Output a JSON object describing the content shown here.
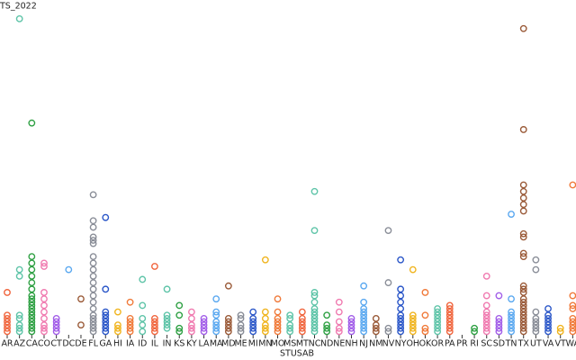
{
  "chart_data": {
    "type": "strip",
    "title": "TS_2022",
    "x_label": "STUSAB",
    "categories": [
      "AR",
      "AZ",
      "CA",
      "CO",
      "CT",
      "DC",
      "DE",
      "FL",
      "GA",
      "HI",
      "IA",
      "ID",
      "IL",
      "IN",
      "KS",
      "KY",
      "LA",
      "MA",
      "MD",
      "ME",
      "MI",
      "MN",
      "MO",
      "MS",
      "MT",
      "NC",
      "ND",
      "NE",
      "NH",
      "NJ",
      "NM",
      "NV",
      "NY",
      "OH",
      "OK",
      "OR",
      "PA",
      "PR",
      "RI",
      "SC",
      "SD",
      "TN",
      "TX",
      "UT",
      "VA",
      "VT",
      "WA"
    ],
    "values": [
      [
        1,
        2,
        3,
        4,
        5,
        6,
        13
      ],
      [
        1,
        2,
        3,
        5,
        6,
        18,
        20,
        97
      ],
      [
        1,
        2,
        3,
        4,
        5,
        6,
        7,
        8,
        9,
        10,
        11,
        12,
        14,
        16,
        18,
        20,
        22,
        24,
        65
      ],
      [
        1,
        2,
        3,
        5,
        7,
        9,
        11,
        13,
        21,
        22
      ],
      [
        1,
        2,
        3,
        4,
        5
      ],
      [
        20
      ],
      [
        3,
        11
      ],
      [
        1,
        2,
        3,
        4,
        5,
        6,
        8,
        10,
        12,
        14,
        16,
        18,
        20,
        22,
        24,
        28,
        29,
        30,
        33,
        35,
        43
      ],
      [
        1,
        2,
        3,
        4,
        5,
        6,
        7,
        14,
        36
      ],
      [
        1,
        2,
        3,
        7
      ],
      [
        1,
        2,
        3,
        4,
        5,
        10
      ],
      [
        1,
        3,
        5,
        9,
        17
      ],
      [
        1,
        2,
        3,
        4,
        5,
        21
      ],
      [
        2,
        3,
        4,
        5,
        6,
        14
      ],
      [
        1,
        2,
        6,
        9
      ],
      [
        1,
        2,
        3,
        5,
        7
      ],
      [
        1,
        2,
        3,
        4,
        5
      ],
      [
        1,
        2,
        3,
        4,
        6,
        7,
        11
      ],
      [
        1,
        2,
        3,
        4,
        5,
        15
      ],
      [
        1,
        2,
        3,
        5,
        6
      ],
      [
        1,
        2,
        3,
        4,
        5,
        7
      ],
      [
        1,
        2,
        3,
        5,
        7,
        23
      ],
      [
        1,
        2,
        3,
        4,
        5,
        7,
        11
      ],
      [
        1,
        2,
        3,
        5,
        6
      ],
      [
        1,
        2,
        3,
        4,
        5,
        7
      ],
      [
        1,
        2,
        3,
        4,
        5,
        6,
        7,
        8,
        10,
        12,
        13,
        32,
        44
      ],
      [
        1,
        2,
        3,
        6
      ],
      [
        1,
        2,
        4,
        7,
        10
      ],
      [
        1,
        2,
        3,
        4,
        5
      ],
      [
        1,
        2,
        3,
        4,
        5,
        6,
        7,
        8,
        10,
        15
      ],
      [
        1,
        2,
        3,
        5
      ],
      [
        1,
        2,
        16,
        32
      ],
      [
        1,
        2,
        3,
        4,
        5,
        6,
        8,
        10,
        12,
        14,
        23
      ],
      [
        1,
        2,
        3,
        4,
        5,
        6,
        20
      ],
      [
        1,
        2,
        6,
        13
      ],
      [
        1,
        2,
        3,
        4,
        5,
        6,
        7,
        8
      ],
      [
        1,
        2,
        3,
        4,
        5,
        6,
        7,
        8,
        9
      ],
      [],
      [
        1,
        2
      ],
      [
        1,
        2,
        3,
        4,
        5,
        6,
        7,
        9,
        12,
        18
      ],
      [
        1,
        2,
        3,
        4,
        5,
        12
      ],
      [
        1,
        2,
        3,
        4,
        5,
        6,
        7,
        11,
        37
      ],
      [
        1,
        2,
        3,
        4,
        5,
        6,
        7,
        8,
        9,
        10,
        11,
        13,
        14,
        15,
        24,
        25,
        30,
        31,
        38,
        40,
        42,
        44,
        46,
        63,
        94
      ],
      [
        1,
        2,
        3,
        4,
        5,
        7,
        20,
        23
      ],
      [
        1,
        2,
        3,
        4,
        5,
        6,
        8
      ],
      [
        1,
        2
      ],
      [
        1,
        2,
        3,
        4,
        5,
        8,
        9,
        12,
        46
      ]
    ],
    "palette": [
      "#f0643c",
      "#5ec4a8",
      "#2ea043",
      "#f07ab0",
      "#a25ee8",
      "#5aa8f0",
      "#9a5a38",
      "#8a8e98",
      "#2a56c8",
      "#f0b41e",
      "#f07a3a",
      "#5ec4a8"
    ],
    "ylim": [
      0,
      100
    ]
  }
}
